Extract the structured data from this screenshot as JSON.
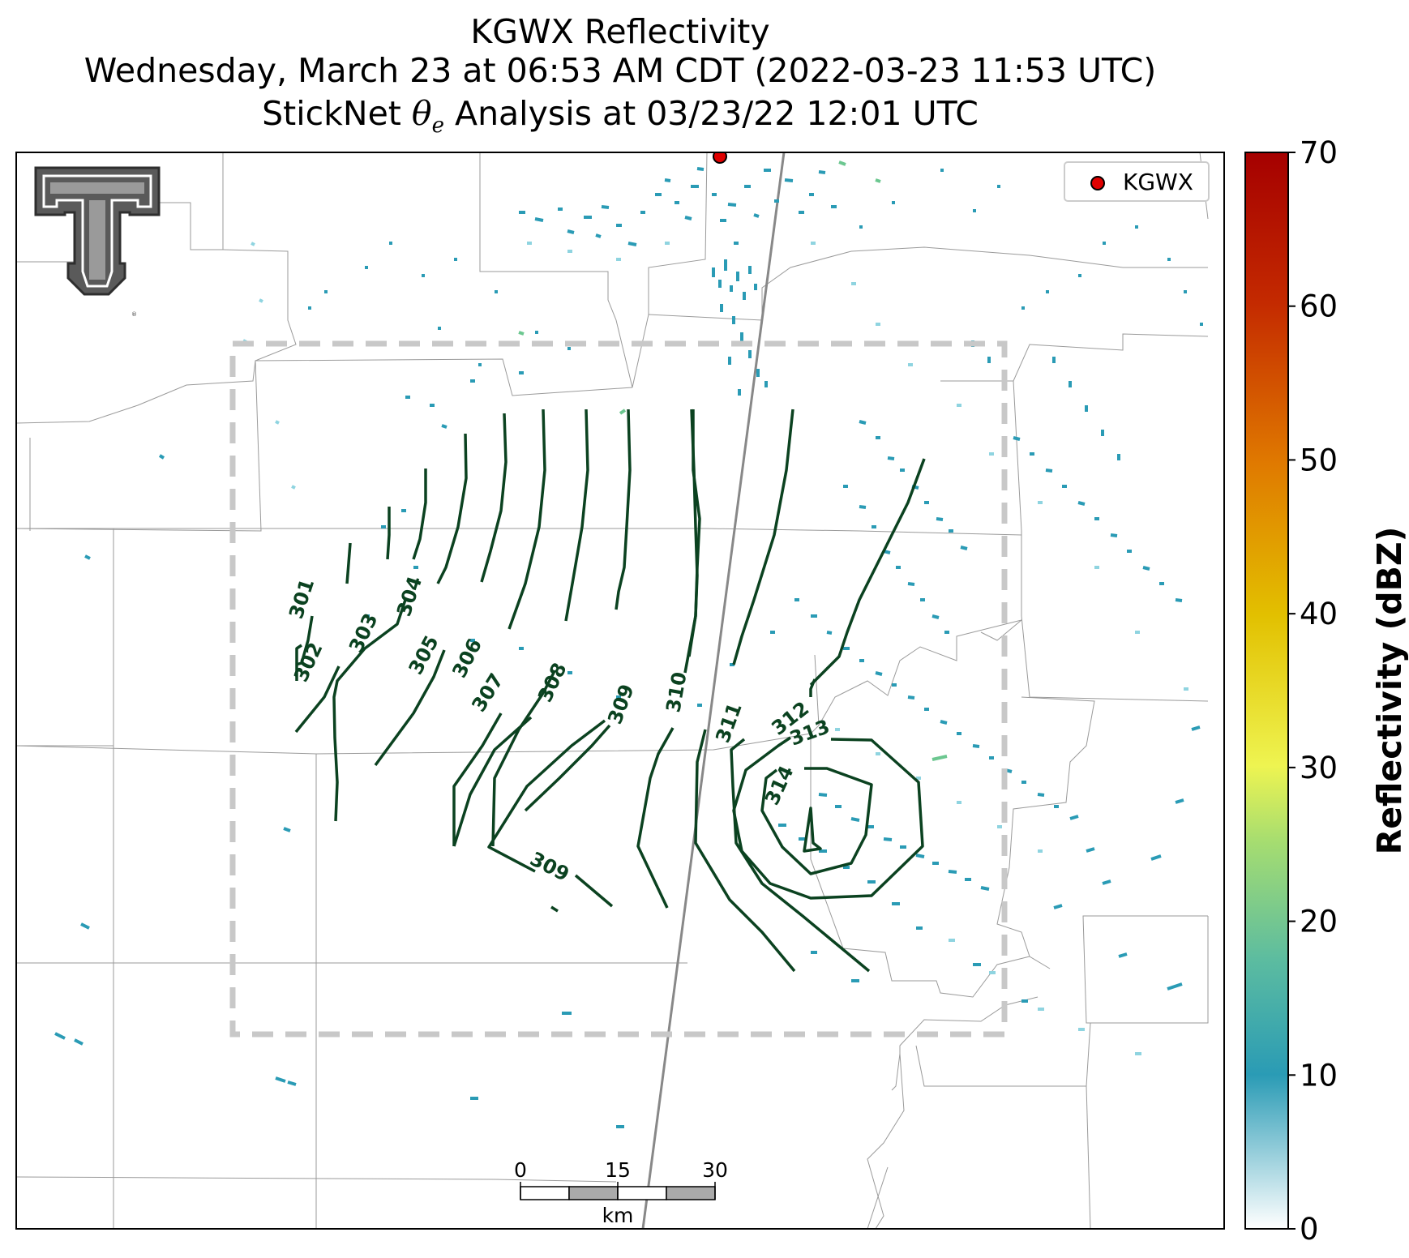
{
  "title": {
    "line1": "KGWX Reflectivity",
    "line2": "Wednesday, March 23 at 06:53 AM CDT (2022-03-23 11:53 UTC)",
    "line3_prefix": "StickNet ",
    "line3_symbol": "θ",
    "line3_sub": "e",
    "line3_suffix": " Analysis at 03/23/22 12:01 UTC"
  },
  "legend": {
    "label": "KGWX",
    "marker_color": "#e00000"
  },
  "logo": {
    "name": "texas-tech-double-t-logo"
  },
  "colorbar": {
    "label": "Reflectivity (dBZ)",
    "ticks": [
      "0",
      "10",
      "20",
      "30",
      "40",
      "50",
      "60",
      "70"
    ],
    "range": [
      0,
      70
    ],
    "colors": [
      "#ffffff",
      "#2a9bb5",
      "#6cc790",
      "#eef451",
      "#e2c000",
      "#e07a00",
      "#c42a00",
      "#a50000"
    ]
  },
  "scale_bar": {
    "ticks": [
      "0",
      "15",
      "30"
    ],
    "unit": "km"
  },
  "contours": {
    "color": "#0b4220",
    "labels": [
      "301",
      "302",
      "303",
      "304",
      "305",
      "306",
      "307",
      "308",
      "309",
      "309",
      "310",
      "311",
      "312",
      "313",
      "314"
    ]
  }
}
